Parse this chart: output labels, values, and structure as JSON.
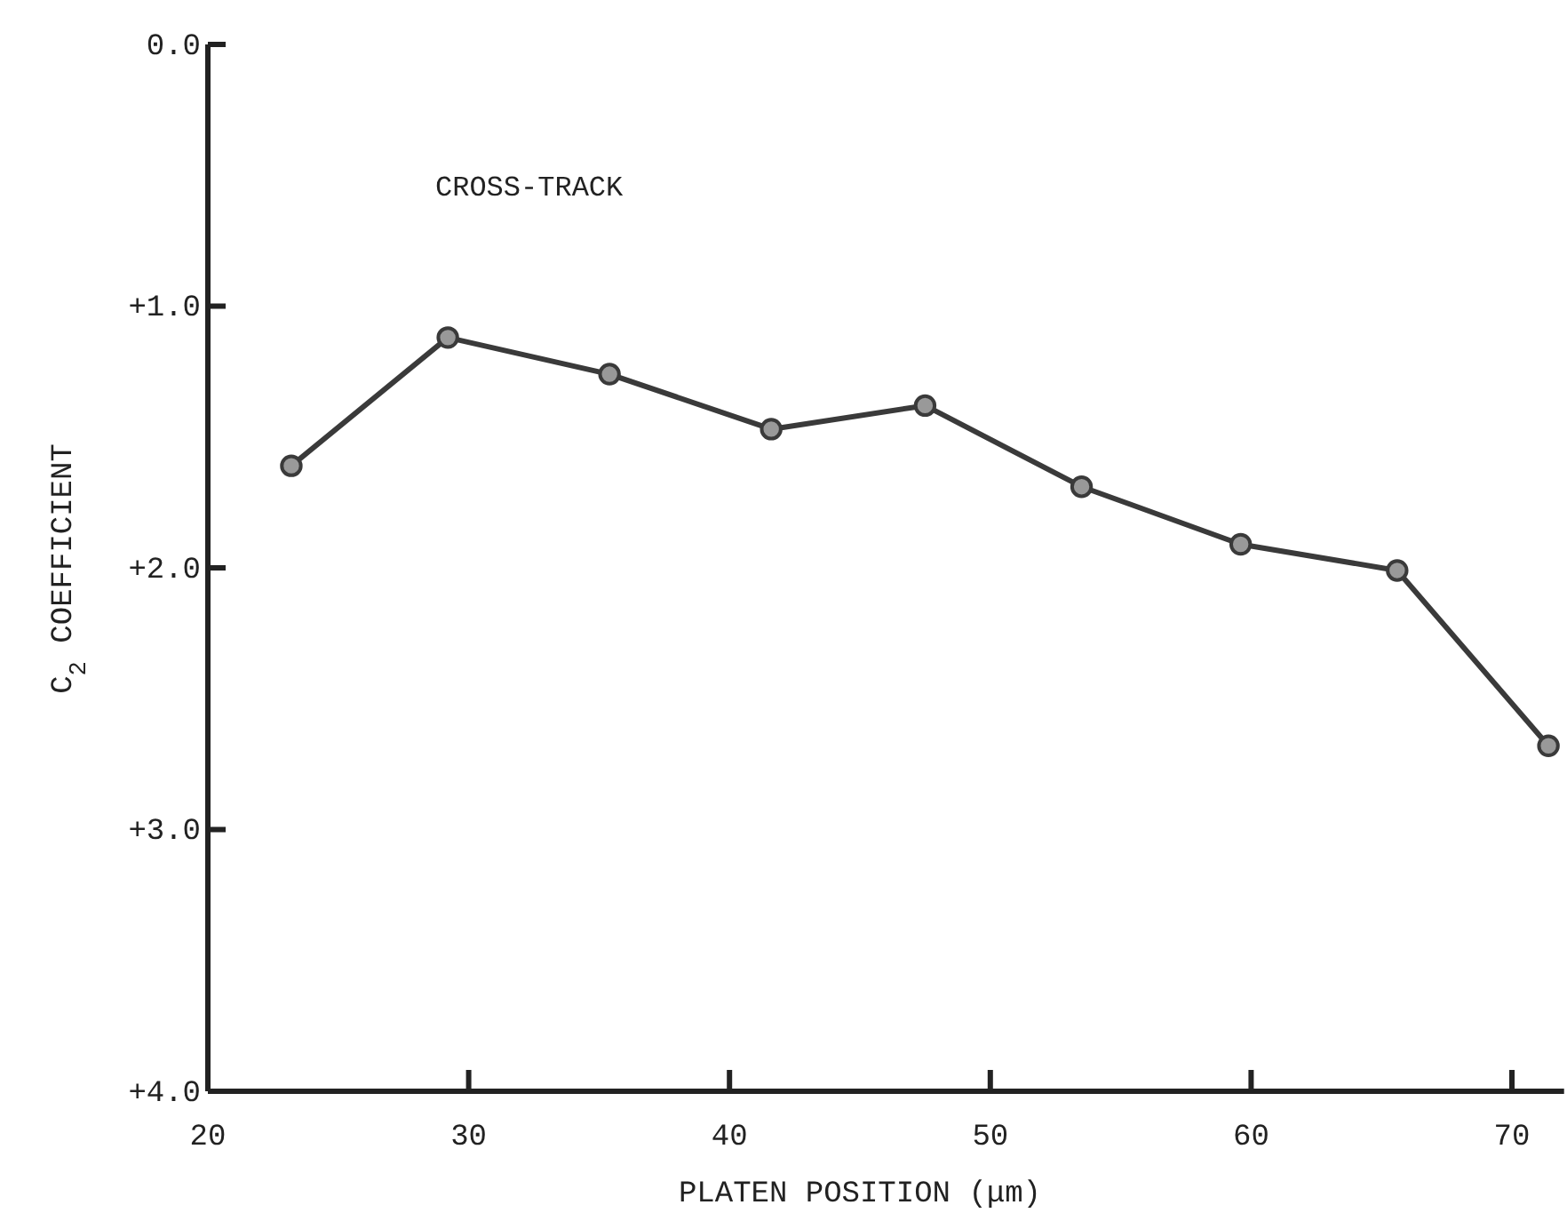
{
  "chart_data": {
    "type": "line",
    "xlabel": "PLATEN POSITION (μm)",
    "ylabel": "C$_{2}$ COEFFICIENT",
    "annotations": [
      "CROSS-TRACK"
    ],
    "x": [
      23.2,
      29.2,
      35.4,
      41.6,
      47.5,
      53.5,
      59.6,
      65.6,
      71.4
    ],
    "series": [
      {
        "color": "#3a3a3a",
        "values": [
          1.61,
          1.12,
          1.26,
          1.47,
          1.38,
          1.69,
          1.91,
          2.01,
          2.68
        ]
      }
    ],
    "xlim": [
      20,
      72
    ],
    "xticks": [
      20,
      30,
      40,
      50,
      60,
      70
    ],
    "ylim": [
      4,
      0
    ],
    "yticks": [
      {
        "value": 0,
        "label": "0.0"
      },
      {
        "value": 1,
        "label": "+1.0"
      },
      {
        "value": 2,
        "label": "+2.0"
      },
      {
        "value": 3,
        "label": "+3.0"
      },
      {
        "value": 4,
        "label": "+4.0"
      }
    ],
    "marker": "circle",
    "line_style": "solid"
  }
}
